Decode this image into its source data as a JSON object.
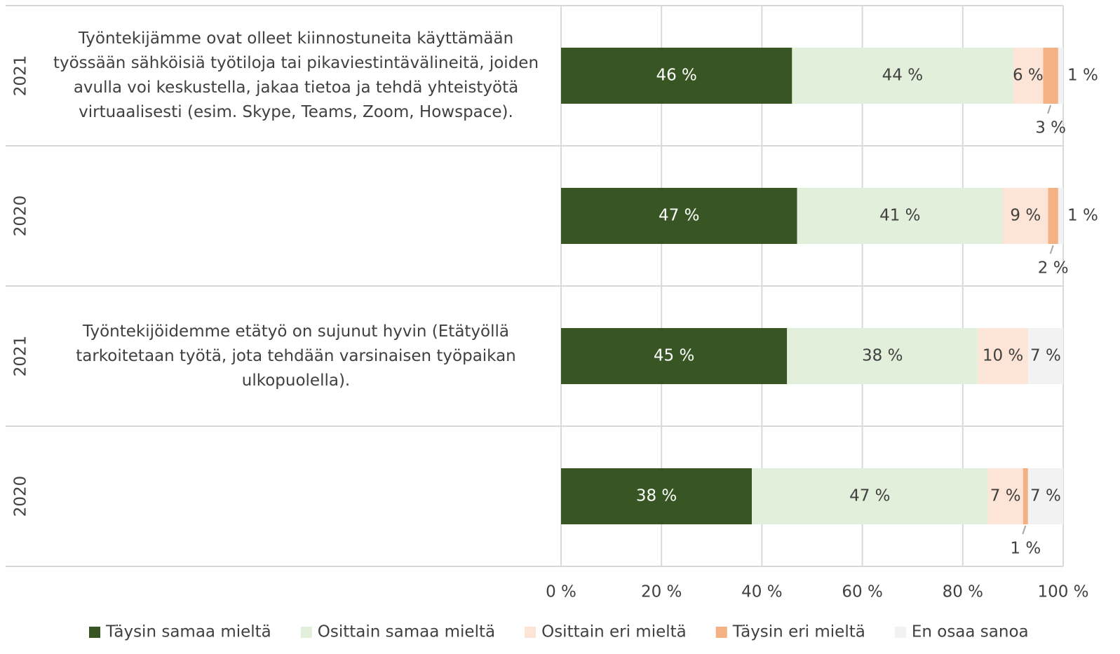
{
  "chart_data": {
    "type": "stacked-bar-horizontal",
    "groups": [
      "Työntekijämme ovat olleet kiinnostuneita käyttämään työssään sähköisiä työtiloja tai pikaviestintävälineitä, joiden avulla voi keskustella, jakaa tietoa ja tehdä yhteistyötä virtuaalisesti (esim. Skype, Teams, Zoom, Howspace).",
      "Työntekijöidemme etätyö on sujunut hyvin (Etätyöllä tarkoitetaan työtä, jota tehdään varsinaisen työpaikan ulkopuolella)."
    ],
    "categories": [
      "2021",
      "2020",
      "2021",
      "2020"
    ],
    "series": [
      {
        "name": "Täysin samaa mieltä",
        "color": "#375623",
        "values": [
          46,
          47,
          45,
          38
        ],
        "value_labels": [
          "46 %",
          "47 %",
          "45 %",
          "38 %"
        ]
      },
      {
        "name": "Osittain samaa mieltä",
        "color": "#e2efda",
        "values": [
          44,
          41,
          38,
          47
        ],
        "value_labels": [
          "44 %",
          "41 %",
          "38 %",
          "47 %"
        ]
      },
      {
        "name": "Osittain eri mieltä",
        "color": "#fce4d6",
        "values": [
          6,
          9,
          10,
          7
        ],
        "value_labels": [
          "6 %",
          "9 %",
          "10 %",
          "7 %"
        ]
      },
      {
        "name": "Täysin eri mieltä",
        "color": "#f4b183",
        "values": [
          3,
          2,
          null,
          1
        ],
        "value_labels": [
          "3 %",
          "2 %",
          null,
          "1 %"
        ]
      },
      {
        "name": "En osaa sanoa",
        "color": "#f2f2f2",
        "values": [
          1,
          1,
          7,
          7
        ],
        "value_labels": [
          "1 %",
          "1 %",
          "7 %",
          "7 %"
        ]
      }
    ],
    "xlim": [
      0,
      100
    ],
    "xticks": [
      {
        "value": 0,
        "label": "0 %"
      },
      {
        "value": 20,
        "label": "20 %"
      },
      {
        "value": 40,
        "label": "40 %"
      },
      {
        "value": 60,
        "label": "60 %"
      },
      {
        "value": 80,
        "label": "80 %"
      },
      {
        "value": 100,
        "label": "100 %"
      }
    ],
    "grid": true,
    "legend": "bottom"
  }
}
